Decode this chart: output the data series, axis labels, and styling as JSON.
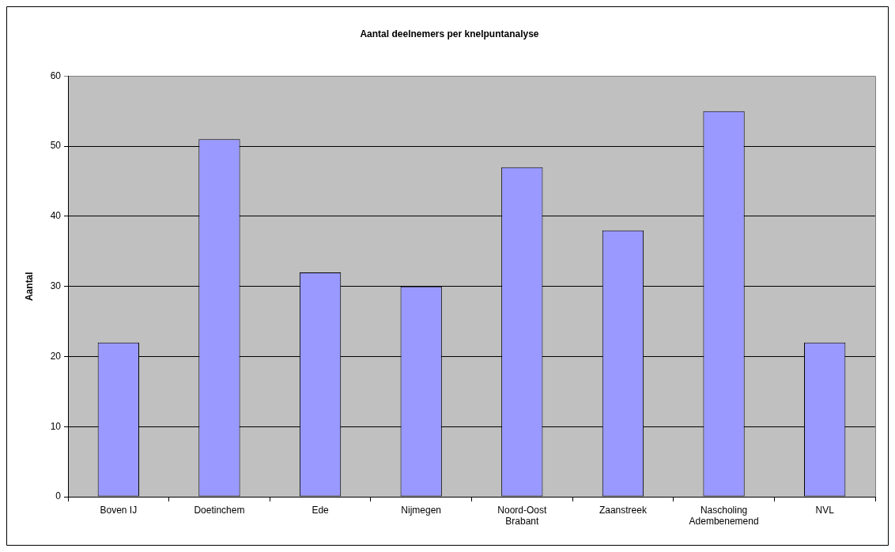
{
  "chart_data": {
    "type": "bar",
    "title": "Aantal deelnemers per knelpuntanalyse",
    "ylabel": "Aantal",
    "categories": [
      "Boven IJ",
      "Doetinchem",
      "Ede",
      "Nijmegen",
      "Noord-Oost Brabant",
      "Zaanstreek",
      "Nascholing Adembenemend",
      "NVL"
    ],
    "values": [
      22,
      51,
      32,
      30,
      47,
      38,
      55,
      22
    ],
    "color": "#9999ff",
    "ylim": [
      0,
      60
    ],
    "yticks": [
      0,
      10,
      20,
      30,
      40,
      50,
      60
    ],
    "grid": "y"
  }
}
